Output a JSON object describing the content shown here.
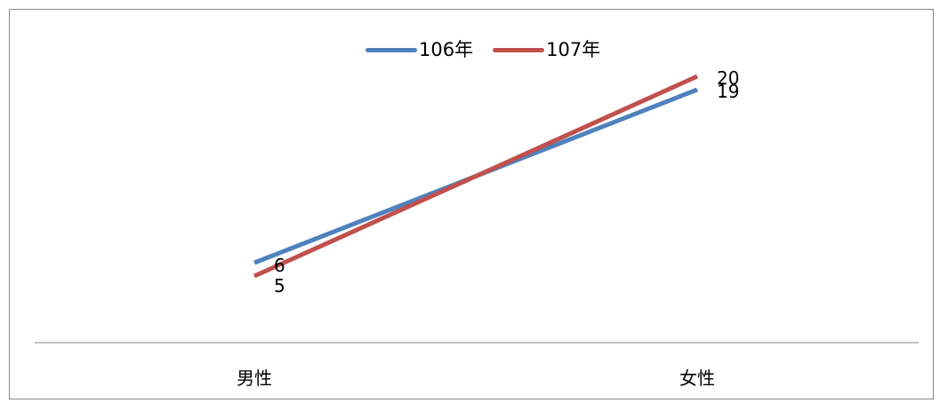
{
  "chart_data": {
    "type": "line",
    "categories": [
      "男性",
      "女性"
    ],
    "series": [
      {
        "name": "106年",
        "values": [
          6,
          19
        ],
        "color": "#4F81BD"
      },
      {
        "name": "107年",
        "values": [
          5,
          20
        ],
        "color": "#C0504D"
      }
    ],
    "title": "",
    "xlabel": "",
    "ylabel": "",
    "ylim": [
      0,
      25
    ],
    "grid": false,
    "legend": "top"
  }
}
